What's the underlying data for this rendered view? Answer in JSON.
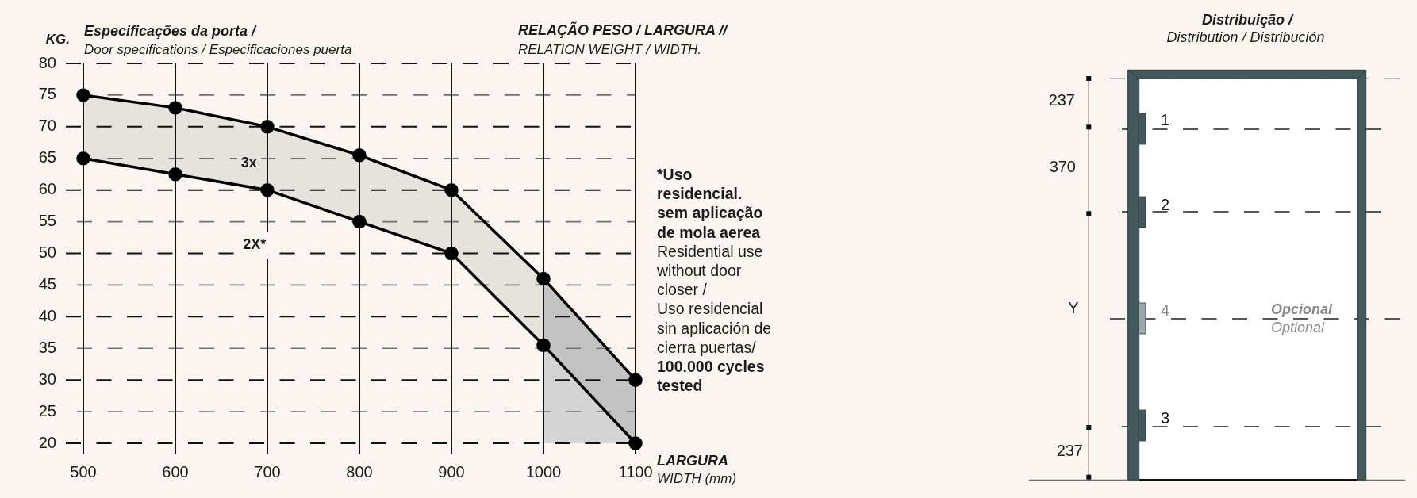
{
  "chart_data": [
    {
      "type": "line",
      "title": "Especificações da porta /",
      "subtitle": "Door specifications / Especificaciones puerta",
      "ylabel": "KG.",
      "xlabel": "LARGURA\nWIDTH (mm)",
      "x": [
        500,
        600,
        700,
        800,
        900,
        1000,
        1100
      ],
      "series": [
        {
          "color": "#000000",
          "values": [
            75,
            73,
            70,
            65.5,
            60,
            46,
            30
          ],
          "lower": [
            65,
            62.5,
            60,
            55,
            50,
            35.5,
            20
          ],
          "upper": [
            75,
            73,
            70,
            65.5,
            60,
            46,
            30
          ]
        },
        {
          "color": "#000000",
          "values": [
            65,
            62.5,
            60,
            55,
            50,
            35.5,
            20
          ]
        }
      ],
      "xlim": [
        500,
        1100
      ],
      "xticks": [
        500,
        600,
        700,
        800,
        900,
        1000,
        1100
      ],
      "ylim": [
        20,
        80
      ],
      "yticks": [
        20,
        25,
        30,
        35,
        40,
        45,
        50,
        55,
        60,
        65,
        70,
        75,
        80
      ],
      "grid": true,
      "marker": "circle",
      "line_style": "solid",
      "bands": [
        {
          "axis": "x",
          "from": 1000,
          "to": 1100,
          "color": "#d4d4d4"
        }
      ],
      "annotations": [
        "3x",
        "2X*",
        "RELAÇÃO PESO / LARGURA //",
        "RELATION WEIGHT / WIDTH.",
        "*Uso residencial. sem aplicação de mola aerea",
        "Residential use without door closer /",
        "Uso residencial sin aplicación de cierra puertas/",
        "100.000 cycles tested"
      ]
    },
    {
      "type": "other",
      "title": "Distribuição /",
      "subtitle": "Distribution / Distribución",
      "annotations": [
        "237",
        "370",
        "Y",
        "237",
        "1",
        "2",
        "4",
        "3",
        "Opcional",
        "Optional"
      ]
    }
  ]
}
